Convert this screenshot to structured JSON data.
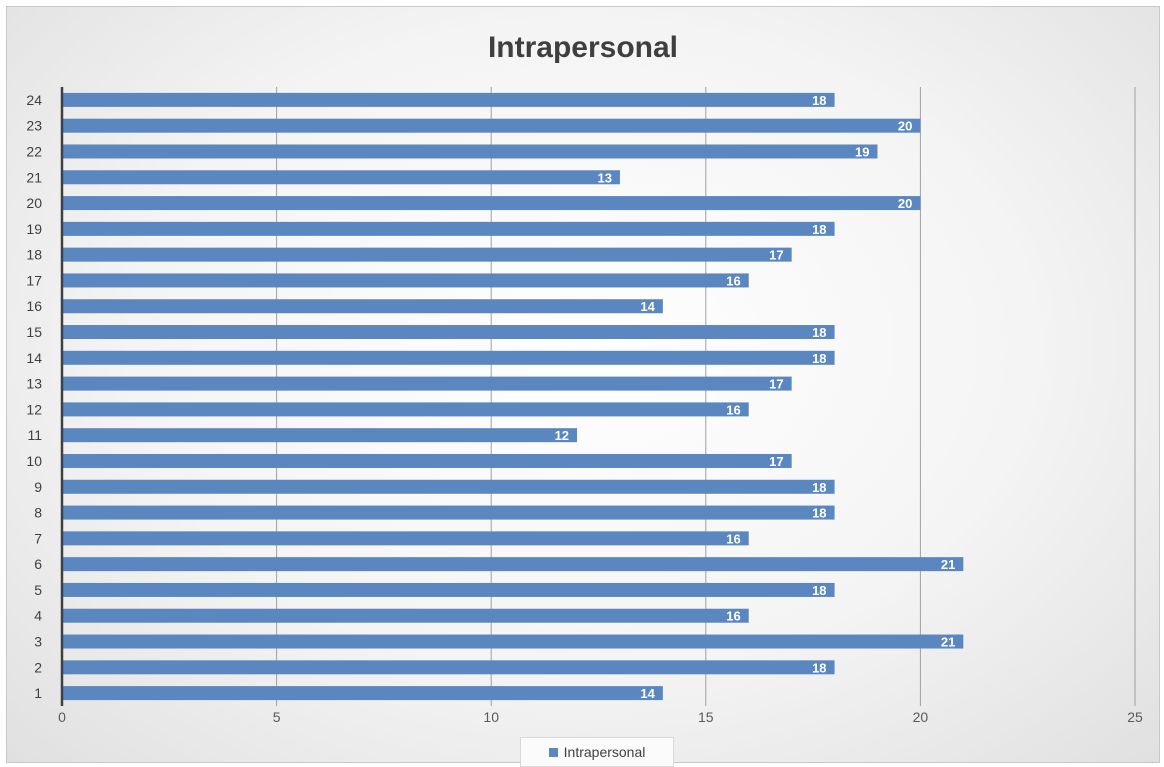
{
  "chart_data": {
    "type": "bar",
    "orientation": "horizontal",
    "title": "Intrapersonal",
    "xlabel": "",
    "ylabel": "",
    "categories": [
      "1",
      "2",
      "3",
      "4",
      "5",
      "6",
      "7",
      "8",
      "9",
      "10",
      "11",
      "12",
      "13",
      "14",
      "15",
      "16",
      "17",
      "18",
      "19",
      "20",
      "21",
      "22",
      "23",
      "24"
    ],
    "series": [
      {
        "name": "Intrapersonal",
        "values": [
          14,
          18,
          21,
          16,
          18,
          21,
          16,
          18,
          18,
          17,
          12,
          16,
          17,
          18,
          18,
          14,
          16,
          17,
          18,
          20,
          13,
          19,
          20,
          18
        ],
        "color": "#5b87c0"
      }
    ],
    "xlim": [
      0,
      25
    ],
    "xticks": [
      "0",
      "5",
      "10",
      "15",
      "20",
      "25"
    ],
    "grid": true,
    "data_labels": true,
    "legend_position": "bottom",
    "colors": {
      "bar": "#5b87c0",
      "label_text": "#ffffff",
      "axis_line": "#404040",
      "gridline": "#a0a0a0"
    }
  }
}
